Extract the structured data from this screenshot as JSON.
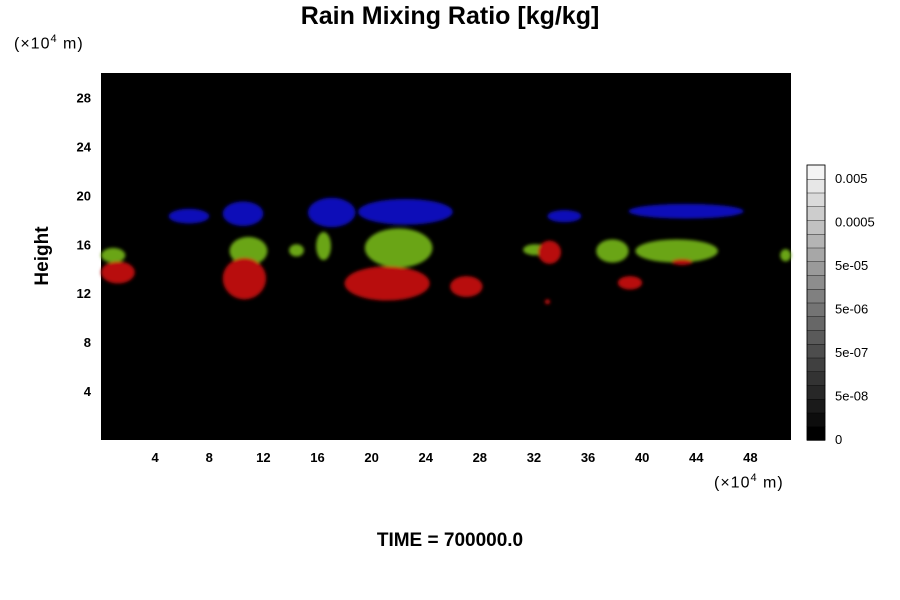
{
  "chart_data": {
    "type": "heatmap",
    "title": "Rain Mixing Ratio [kg/kg]",
    "ylabel": "Height",
    "xlabel": "",
    "x_unit": "(×10⁴ m)",
    "y_unit": "(×10⁴ m)",
    "unit_base": "(×10",
    "unit_exp": "4",
    "unit_tail": " m)",
    "xlim": [
      0,
      51
    ],
    "ylim": [
      0,
      30
    ],
    "x_ticks": [
      4,
      8,
      12,
      16,
      20,
      24,
      28,
      32,
      36,
      40,
      44,
      48
    ],
    "y_ticks": [
      4,
      8,
      12,
      16,
      20,
      24,
      28
    ],
    "x_tick_labels": [
      "4",
      "8",
      "12",
      "16",
      "20",
      "24",
      "28",
      "32",
      "36",
      "40",
      "44",
      "48"
    ],
    "y_tick_labels": [
      "4",
      "8",
      "12",
      "16",
      "20",
      "24",
      "28"
    ],
    "background": "#000000",
    "colorbar": {
      "labels": [
        "0.005",
        "0.0005",
        "5e-05",
        "5e-06",
        "5e-07",
        "5e-08",
        "0"
      ],
      "levels": 20,
      "color_low": "#000000",
      "color_high": "#f4f4f4"
    },
    "features": [
      {
        "color": "#1010b8",
        "x": [
          5,
          8
        ],
        "y": [
          17.7,
          18.9
        ]
      },
      {
        "color": "#1010b8",
        "x": [
          9,
          12
        ],
        "y": [
          17.5,
          19.5
        ]
      },
      {
        "color": "#1010b8",
        "x": [
          15.3,
          18.8
        ],
        "y": [
          17.4,
          19.8
        ]
      },
      {
        "color": "#1010b8",
        "x": [
          19,
          26
        ],
        "y": [
          17.6,
          19.7
        ]
      },
      {
        "color": "#1010b8",
        "x": [
          33,
          35.5
        ],
        "y": [
          17.8,
          18.8
        ]
      },
      {
        "color": "#1010b8",
        "x": [
          39,
          47.5
        ],
        "y": [
          18.1,
          19.3
        ]
      },
      {
        "color": "#6aa515",
        "x": [
          0,
          1.8
        ],
        "y": [
          14.5,
          15.7
        ]
      },
      {
        "color": "#6aa515",
        "x": [
          9.5,
          12.3
        ],
        "y": [
          14.3,
          16.6
        ]
      },
      {
        "color": "#6aa515",
        "x": [
          13.9,
          15
        ],
        "y": [
          15,
          16
        ]
      },
      {
        "color": "#6aa515",
        "x": [
          15.9,
          17
        ],
        "y": [
          14.7,
          17
        ]
      },
      {
        "color": "#6aa515",
        "x": [
          19.5,
          24.5
        ],
        "y": [
          14.1,
          17.3
        ]
      },
      {
        "color": "#6aa515",
        "x": [
          31.2,
          33
        ],
        "y": [
          15.1,
          16
        ]
      },
      {
        "color": "#6aa515",
        "x": [
          36.6,
          39
        ],
        "y": [
          14.5,
          16.4
        ]
      },
      {
        "color": "#6aa515",
        "x": [
          39.5,
          45.6
        ],
        "y": [
          14.5,
          16.4
        ]
      },
      {
        "color": "#6aa515",
        "x": [
          50.2,
          51
        ],
        "y": [
          14.6,
          15.6
        ]
      },
      {
        "color": "#b81010",
        "x": [
          0,
          2.5
        ],
        "y": [
          12.8,
          14.6
        ]
      },
      {
        "color": "#b81010",
        "x": [
          9,
          12.2
        ],
        "y": [
          11.5,
          14.9
        ]
      },
      {
        "color": "#b81010",
        "x": [
          18,
          24.3
        ],
        "y": [
          11.4,
          14.2
        ]
      },
      {
        "color": "#b81010",
        "x": [
          25.8,
          28.2
        ],
        "y": [
          11.7,
          13.4
        ]
      },
      {
        "color": "#b81010",
        "x": [
          32.3,
          34
        ],
        "y": [
          14.4,
          16.3
        ]
      },
      {
        "color": "#b81010",
        "x": [
          38.2,
          40
        ],
        "y": [
          12.3,
          13.4
        ]
      },
      {
        "color": "#b81010",
        "x": [
          42.2,
          43.7
        ],
        "y": [
          14.3,
          14.8
        ]
      },
      {
        "color": "#b81010",
        "x": [
          32.8,
          33.2
        ],
        "y": [
          11.1,
          11.5
        ]
      }
    ]
  },
  "footer": "TIME = 700000.0"
}
